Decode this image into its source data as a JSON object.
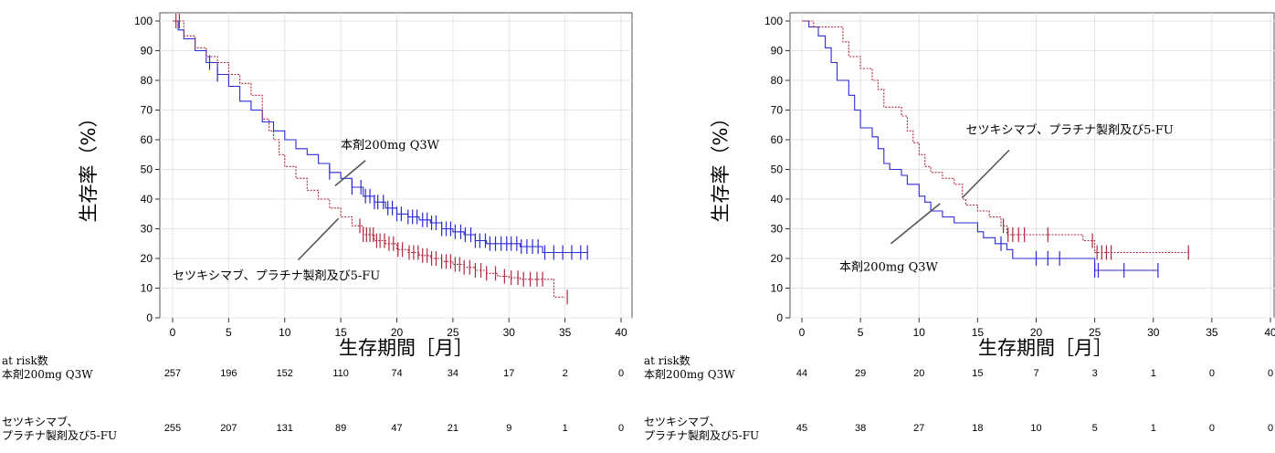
{
  "chart_data": [
    {
      "type": "line",
      "subtype": "kaplan-meier",
      "ylabel": "生存率（%）",
      "xlabel": "生存期間［月］",
      "xlim": [
        0,
        40
      ],
      "ylim": [
        0,
        100
      ],
      "xticks": [
        0,
        5,
        10,
        15,
        20,
        25,
        30,
        35,
        40
      ],
      "yticks": [
        0,
        10,
        20,
        30,
        40,
        50,
        60,
        70,
        80,
        90,
        100
      ],
      "grid": true,
      "series": [
        {
          "name": "本剤200mg Q3W",
          "color": "#2a2ad6",
          "dash": false,
          "points": [
            [
              0,
              100
            ],
            [
              0.5,
              97
            ],
            [
              1,
              94
            ],
            [
              2,
              90
            ],
            [
              3,
              86
            ],
            [
              4,
              82
            ],
            [
              5,
              78
            ],
            [
              6,
              73
            ],
            [
              7,
              70
            ],
            [
              8,
              66
            ],
            [
              9,
              63
            ],
            [
              10,
              60
            ],
            [
              11,
              57
            ],
            [
              12,
              55
            ],
            [
              13,
              52
            ],
            [
              14,
              49
            ],
            [
              15,
              47
            ],
            [
              16,
              44
            ],
            [
              17,
              41
            ],
            [
              18,
              39
            ],
            [
              19,
              37
            ],
            [
              20,
              35
            ],
            [
              21,
              34
            ],
            [
              22,
              33
            ],
            [
              23,
              32
            ],
            [
              24,
              30
            ],
            [
              25,
              29
            ],
            [
              26,
              28
            ],
            [
              27,
              26
            ],
            [
              28,
              25
            ],
            [
              29,
              25
            ],
            [
              30,
              25
            ],
            [
              31,
              24
            ],
            [
              32,
              24
            ],
            [
              33,
              22
            ],
            [
              35,
              22
            ],
            [
              37,
              22
            ]
          ],
          "censor_x": [
            3.3,
            4,
            14,
            16,
            16.8,
            17.2,
            17.6,
            18,
            18.3,
            18.8,
            19.2,
            19.6,
            20,
            20.4,
            21,
            21.4,
            21.8,
            22.3,
            22.7,
            23.1,
            23.5,
            24,
            24.4,
            24.8,
            25.2,
            25.7,
            26.1,
            26.6,
            27,
            27.4,
            27.9,
            28.3,
            28.8,
            29.3,
            29.8,
            30.2,
            30.7,
            31.1,
            31.6,
            32.1,
            32.6,
            33.2,
            34,
            34.8,
            35.6,
            36.4,
            37
          ]
        },
        {
          "name": "セツキシマブ、プラチナ製剤及び5-FU",
          "color": "#b0283c",
          "dash": true,
          "points": [
            [
              0,
              100
            ],
            [
              1,
              95
            ],
            [
              2,
              91
            ],
            [
              3,
              88
            ],
            [
              4,
              86
            ],
            [
              5,
              82
            ],
            [
              6,
              79
            ],
            [
              7,
              75
            ],
            [
              8,
              67
            ],
            [
              8.6,
              63
            ],
            [
              9,
              60
            ],
            [
              9.5,
              55
            ],
            [
              10,
              51
            ],
            [
              11,
              47
            ],
            [
              12,
              43
            ],
            [
              13,
              40
            ],
            [
              14,
              37
            ],
            [
              15,
              34
            ],
            [
              16,
              31
            ],
            [
              17,
              28
            ],
            [
              18,
              26
            ],
            [
              19,
              25
            ],
            [
              20,
              23
            ],
            [
              21,
              22
            ],
            [
              22,
              21
            ],
            [
              23,
              20
            ],
            [
              24,
              19
            ],
            [
              25,
              18
            ],
            [
              26,
              17
            ],
            [
              27,
              16
            ],
            [
              28,
              15
            ],
            [
              29,
              14
            ],
            [
              30,
              13.5
            ],
            [
              31,
              13
            ],
            [
              32,
              13
            ],
            [
              33,
              13
            ],
            [
              34,
              7
            ],
            [
              35,
              7
            ]
          ],
          "censor_x": [
            0.3,
            0.6,
            16.7,
            17,
            17.3,
            17.6,
            17.9,
            18.2,
            18.5,
            18.9,
            19.3,
            19.7,
            20.1,
            20.5,
            21.1,
            21.5,
            21.9,
            22.3,
            22.7,
            23.1,
            23.5,
            24,
            24.4,
            24.8,
            25.2,
            25.6,
            26,
            26.5,
            27,
            27.5,
            28,
            28.8,
            29.6,
            30.2,
            30.8,
            31.3,
            31.9,
            32.5,
            33,
            35.2
          ]
        }
      ],
      "annotations": [
        {
          "text": "本剤200mg Q3W",
          "x": 15,
          "y": 57,
          "line_to": [
            14.5,
            44.5
          ],
          "line_from": [
            17.2,
            53
          ]
        },
        {
          "text": "セツキシマブ、プラチナ製剤及び5-FU",
          "x": 0,
          "y": 13,
          "line_to": [
            14.8,
            33.5
          ],
          "line_from": [
            11.2,
            19.5
          ]
        }
      ],
      "risk_table": {
        "header": "at risk数",
        "rows": [
          {
            "label_lines": [
              "本剤200mg Q3W"
            ],
            "values": [
              257,
              196,
              152,
              110,
              74,
              34,
              17,
              2,
              0
            ]
          },
          {
            "label_lines": [
              "セツキシマブ、",
              "プラチナ製剤及び5-FU"
            ],
            "values": [
              255,
              207,
              131,
              89,
              47,
              21,
              9,
              1,
              0
            ]
          }
        ]
      }
    },
    {
      "type": "line",
      "subtype": "kaplan-meier",
      "ylabel": "生存率（%）",
      "xlabel": "生存期間［月］",
      "xlim": [
        0,
        40
      ],
      "ylim": [
        0,
        100
      ],
      "xticks": [
        0,
        5,
        10,
        15,
        20,
        25,
        30,
        35,
        40
      ],
      "yticks": [
        0,
        10,
        20,
        30,
        40,
        50,
        60,
        70,
        80,
        90,
        100
      ],
      "grid": true,
      "series": [
        {
          "name": "本剤200mg Q3W",
          "color": "#2a2ad6",
          "dash": false,
          "points": [
            [
              0,
              100
            ],
            [
              0.6,
              98
            ],
            [
              1.4,
              95
            ],
            [
              2,
              91
            ],
            [
              2.5,
              86
            ],
            [
              3,
              80
            ],
            [
              4,
              75
            ],
            [
              4.5,
              70
            ],
            [
              5,
              64
            ],
            [
              6,
              61
            ],
            [
              6.5,
              57
            ],
            [
              7,
              52
            ],
            [
              7.5,
              50
            ],
            [
              8.5,
              48
            ],
            [
              9,
              45
            ],
            [
              10,
              41
            ],
            [
              10.5,
              39
            ],
            [
              11,
              36
            ],
            [
              12,
              34
            ],
            [
              13,
              32
            ],
            [
              15,
              29
            ],
            [
              15.5,
              27
            ],
            [
              16.5,
              25
            ],
            [
              17.5,
              23
            ],
            [
              18,
              20
            ],
            [
              19,
              20
            ],
            [
              22,
              20
            ],
            [
              25,
              16
            ],
            [
              30.4,
              16
            ]
          ],
          "censor_x": [
            17,
            20,
            21,
            22,
            25,
            25.3,
            27.5,
            30.4
          ]
        },
        {
          "name": "セツキシマブ、プラチナ製剤及び5-FU",
          "color": "#b0283c",
          "dash": true,
          "points": [
            [
              0,
              100
            ],
            [
              1,
              98
            ],
            [
              2,
              98
            ],
            [
              3,
              98
            ],
            [
              3.5,
              93
            ],
            [
              4,
              88
            ],
            [
              5,
              84
            ],
            [
              6,
              80
            ],
            [
              6.5,
              77
            ],
            [
              7,
              71
            ],
            [
              8.5,
              68
            ],
            [
              9,
              63
            ],
            [
              9.5,
              59
            ],
            [
              10,
              55
            ],
            [
              10.5,
              51
            ],
            [
              11,
              49
            ],
            [
              12,
              47
            ],
            [
              13,
              45
            ],
            [
              13.7,
              40
            ],
            [
              14,
              38
            ],
            [
              15,
              36
            ],
            [
              16,
              34
            ],
            [
              17,
              31
            ],
            [
              17.5,
              28
            ],
            [
              19,
              28
            ],
            [
              24,
              26
            ],
            [
              25,
              22
            ],
            [
              33,
              22
            ]
          ],
          "censor_x": [
            17.2,
            17.6,
            18,
            18.5,
            19,
            21,
            24.8,
            25.2,
            25.6,
            26,
            26.4,
            33
          ]
        }
      ],
      "annotations": [
        {
          "text": "セツキシマブ、プラチナ製剤及び5-FU",
          "x": 14,
          "y": 62,
          "line_to": [
            13.7,
            40.5
          ],
          "line_from": [
            17.7,
            56.5
          ]
        },
        {
          "text": "本剤200mg Q3W",
          "x": 3.2,
          "y": 15.8,
          "line_to": [
            11.8,
            38.5
          ],
          "line_from": [
            7.6,
            25
          ]
        }
      ],
      "risk_table": {
        "header": "at risk数",
        "rows": [
          {
            "label_lines": [
              "本剤200mg Q3W"
            ],
            "values": [
              44,
              29,
              20,
              15,
              7,
              3,
              1,
              0,
              0
            ]
          },
          {
            "label_lines": [
              "セツキシマブ、",
              "プラチナ製剤及び5-FU"
            ],
            "values": [
              45,
              38,
              27,
              18,
              10,
              5,
              1,
              0,
              0
            ]
          }
        ]
      }
    }
  ]
}
